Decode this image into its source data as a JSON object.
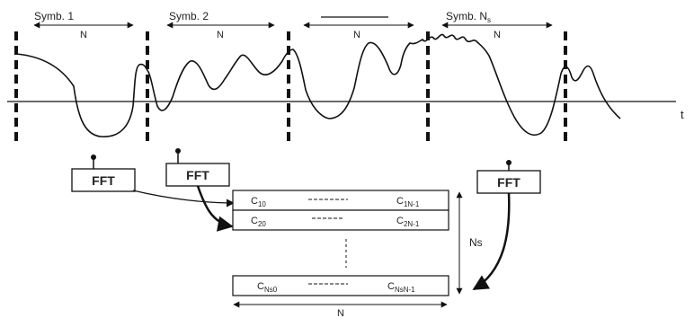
{
  "symbols": {
    "symb1": "Symb. 1",
    "symb2": "Symb. 2",
    "symbNs_base": "Symb. N",
    "symbNs_sub": "s",
    "n_label": "N"
  },
  "time_axis_label": "t",
  "fft_label": "FFT",
  "matrix": {
    "row1": {
      "left_base": "C",
      "left_sub": "10",
      "right_base": "C",
      "right_sub": "1N-1"
    },
    "row2": {
      "left_base": "C",
      "left_sub": "20",
      "right_base": "C",
      "right_sub": "2N-1"
    },
    "rowN": {
      "left_base": "C",
      "left_sub": "Ns0",
      "right_base": "C",
      "right_sub": "NsN-1"
    },
    "rows_label": "Ns",
    "width_label": "N"
  },
  "colors": {
    "ink": "#111111",
    "box_fill": "#ffffff"
  }
}
